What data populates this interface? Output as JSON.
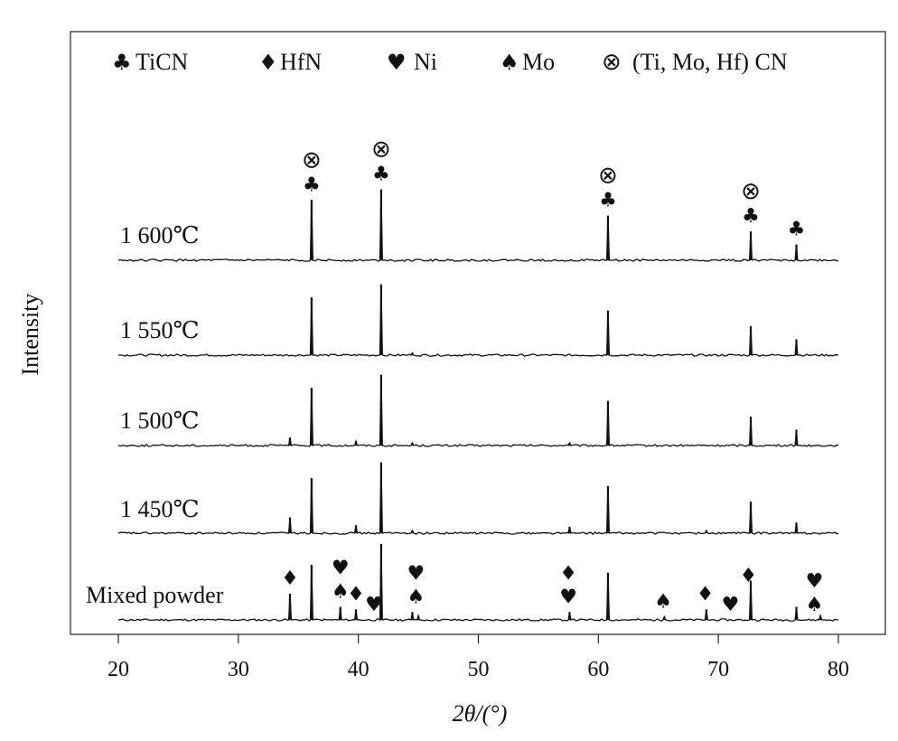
{
  "chart_data": {
    "type": "line",
    "xlabel": "2θ/(°)",
    "ylabel": "Intensity",
    "xlim": [
      20,
      80
    ],
    "xticks": [
      "20",
      "30",
      "40",
      "50",
      "60",
      "70",
      "80"
    ],
    "legend": {
      "placement": "top",
      "entries": [
        {
          "symbol": "♣",
          "label": "TiCN"
        },
        {
          "symbol": "♦",
          "label": "HfN"
        },
        {
          "symbol": "♥",
          "label": "Ni"
        },
        {
          "symbol": "♠",
          "label": "Mo"
        },
        {
          "symbol": "⊗",
          "label": "(Ti, Mo, Hf) CN"
        }
      ]
    },
    "series": [
      {
        "name": "Mixed powder",
        "peaks": [
          [
            34.3,
            0.5
          ],
          [
            36.1,
            1.05
          ],
          [
            38.5,
            0.25
          ],
          [
            39.8,
            0.2
          ],
          [
            41.9,
            1.45
          ],
          [
            44.5,
            0.15
          ],
          [
            45.0,
            0.08
          ],
          [
            57.6,
            0.15
          ],
          [
            60.8,
            0.9
          ],
          [
            65.5,
            0.06
          ],
          [
            69.0,
            0.2
          ],
          [
            72.7,
            0.75
          ],
          [
            76.5,
            0.25
          ],
          [
            78.5,
            0.08
          ]
        ]
      },
      {
        "name": "1 450℃",
        "peaks": [
          [
            34.3,
            0.3
          ],
          [
            36.1,
            1.05
          ],
          [
            39.8,
            0.15
          ],
          [
            41.9,
            1.35
          ],
          [
            44.5,
            0.05
          ],
          [
            57.6,
            0.12
          ],
          [
            60.8,
            0.9
          ],
          [
            69.0,
            0.05
          ],
          [
            72.7,
            0.6
          ],
          [
            76.5,
            0.2
          ]
        ]
      },
      {
        "name": "1 500℃",
        "peaks": [
          [
            34.3,
            0.15
          ],
          [
            36.1,
            1.1
          ],
          [
            39.8,
            0.08
          ],
          [
            41.9,
            1.35
          ],
          [
            44.5,
            0.05
          ],
          [
            57.6,
            0.05
          ],
          [
            60.8,
            0.85
          ],
          [
            72.7,
            0.55
          ],
          [
            76.5,
            0.3
          ]
        ]
      },
      {
        "name": "1 550℃",
        "peaks": [
          [
            36.1,
            1.1
          ],
          [
            41.9,
            1.35
          ],
          [
            44.5,
            0.04
          ],
          [
            60.8,
            0.85
          ],
          [
            72.7,
            0.55
          ],
          [
            76.5,
            0.3
          ]
        ]
      },
      {
        "name": "1 600℃",
        "peaks": [
          [
            36.1,
            1.15
          ],
          [
            41.9,
            1.35
          ],
          [
            60.8,
            0.85
          ],
          [
            72.7,
            0.55
          ],
          [
            76.5,
            0.3
          ]
        ]
      }
    ],
    "annotations": [
      {
        "series": "1 600℃",
        "x": 36.1,
        "symbols": [
          "⊗",
          "♣"
        ]
      },
      {
        "series": "1 600℃",
        "x": 41.9,
        "symbols": [
          "⊗",
          "♣"
        ]
      },
      {
        "series": "1 600℃",
        "x": 60.8,
        "symbols": [
          "⊗",
          "♣"
        ]
      },
      {
        "series": "1 600℃",
        "x": 72.7,
        "symbols": [
          "⊗",
          "♣"
        ]
      },
      {
        "series": "1 600℃",
        "x": 76.5,
        "symbols": [
          "♣"
        ]
      },
      {
        "series": "Mixed powder",
        "x": 34.3,
        "symbols": [
          "♦"
        ]
      },
      {
        "series": "Mixed powder",
        "x": 38.5,
        "symbols": [
          "♥",
          "♠"
        ]
      },
      {
        "series": "Mixed powder",
        "x": 39.8,
        "symbols": [
          "♦"
        ]
      },
      {
        "series": "Mixed powder",
        "x": 41.3,
        "symbols": [
          "♥"
        ]
      },
      {
        "series": "Mixed powder",
        "x": 44.8,
        "symbols": [
          "♥",
          "♠"
        ]
      },
      {
        "series": "Mixed powder",
        "x": 57.5,
        "symbols": [
          "♦",
          "♥"
        ]
      },
      {
        "series": "Mixed powder",
        "x": 65.4,
        "symbols": [
          "♠"
        ]
      },
      {
        "series": "Mixed powder",
        "x": 68.9,
        "symbols": [
          "♦"
        ]
      },
      {
        "series": "Mixed powder",
        "x": 71.0,
        "symbols": [
          "♥"
        ]
      },
      {
        "series": "Mixed powder",
        "x": 72.5,
        "symbols": [
          "♦"
        ]
      },
      {
        "series": "Mixed powder",
        "x": 78.0,
        "symbols": [
          "♥",
          "♠"
        ]
      }
    ]
  }
}
